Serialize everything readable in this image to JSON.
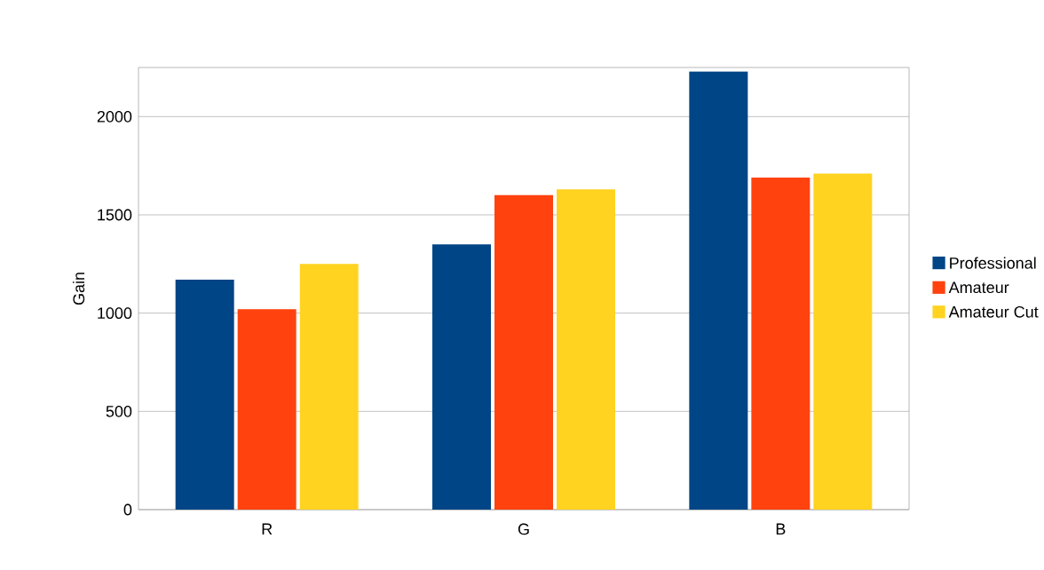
{
  "chart_data": {
    "type": "bar",
    "ylabel": "Gain",
    "categories": [
      "R",
      "G",
      "B"
    ],
    "series": [
      {
        "name": "Professional",
        "color": "#004586",
        "values": [
          1170,
          1350,
          2230
        ]
      },
      {
        "name": "Amateur",
        "color": "#ff420e",
        "values": [
          1020,
          1600,
          1690
        ]
      },
      {
        "name": "Amateur Cut",
        "color": "#ffd320",
        "values": [
          1250,
          1630,
          1710
        ]
      }
    ],
    "ylim": [
      0,
      2250
    ],
    "yticks": [
      0,
      500,
      1000,
      1500,
      2000
    ],
    "grid": "y",
    "legend": "right"
  }
}
